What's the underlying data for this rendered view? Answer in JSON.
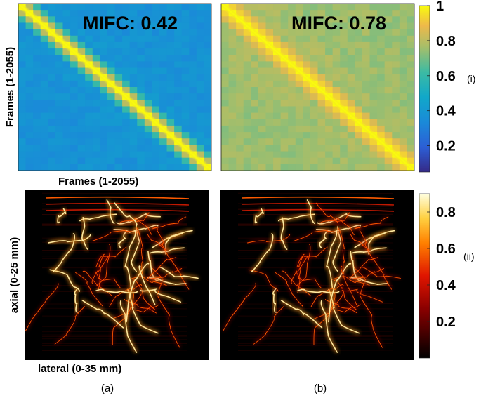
{
  "chart_data": [
    {
      "type": "heatmap",
      "panel": "(a)-(i)",
      "title": "MIFC: 0.42",
      "xlabel": "Frames (1-2055)",
      "ylabel": "Frames (1-2055)",
      "x_range": [
        1,
        2055
      ],
      "y_range": [
        1,
        2055
      ],
      "diagonal_value": 1,
      "off_diagonal_typical": 0.4,
      "colormap": "parula",
      "clim": [
        0.05,
        1
      ]
    },
    {
      "type": "heatmap",
      "panel": "(b)-(i)",
      "title": "MIFC: 0.78",
      "x_range": [
        1,
        2055
      ],
      "y_range": [
        1,
        2055
      ],
      "diagonal_value": 1,
      "off_diagonal_typical": 0.78,
      "colormap": "parula",
      "clim": [
        0.05,
        1
      ]
    },
    {
      "type": "heatmap",
      "panel": "(a)-(ii)",
      "xlabel": "lateral (0-35 mm)",
      "ylabel": "axial (0-25 mm)",
      "x_range": [
        0,
        35
      ],
      "y_range": [
        0,
        25
      ],
      "colormap": "hot",
      "clim": [
        0,
        0.9
      ]
    },
    {
      "type": "heatmap",
      "panel": "(b)-(ii)",
      "x_range": [
        0,
        35
      ],
      "y_range": [
        0,
        25
      ],
      "colormap": "hot",
      "clim": [
        0,
        0.9
      ]
    }
  ],
  "colorbars": {
    "top": {
      "ticks": [
        "1",
        "0.8",
        "0.6",
        "0.4",
        "0.2"
      ],
      "tick_values": [
        1,
        0.8,
        0.6,
        0.4,
        0.2
      ],
      "range": [
        0.05,
        1
      ],
      "label": "(i)"
    },
    "bottom": {
      "ticks": [
        "0.8",
        "0.6",
        "0.4",
        "0.2"
      ],
      "tick_values": [
        0.8,
        0.6,
        0.4,
        0.2
      ],
      "range": [
        0,
        0.9
      ],
      "label": "(ii)"
    }
  },
  "labels": {
    "top_left_title": "MIFC: 0.42",
    "top_right_title": "MIFC: 0.78",
    "top_xlabel": "Frames (1-2055)",
    "top_ylabel": "Frames (1-2055)",
    "bottom_xlabel": "lateral (0-35 mm)",
    "bottom_ylabel": "axial (0-25 mm)",
    "panel_a": "(a)",
    "panel_b": "(b)",
    "row_i": "(i)",
    "row_ii": "(ii)"
  }
}
